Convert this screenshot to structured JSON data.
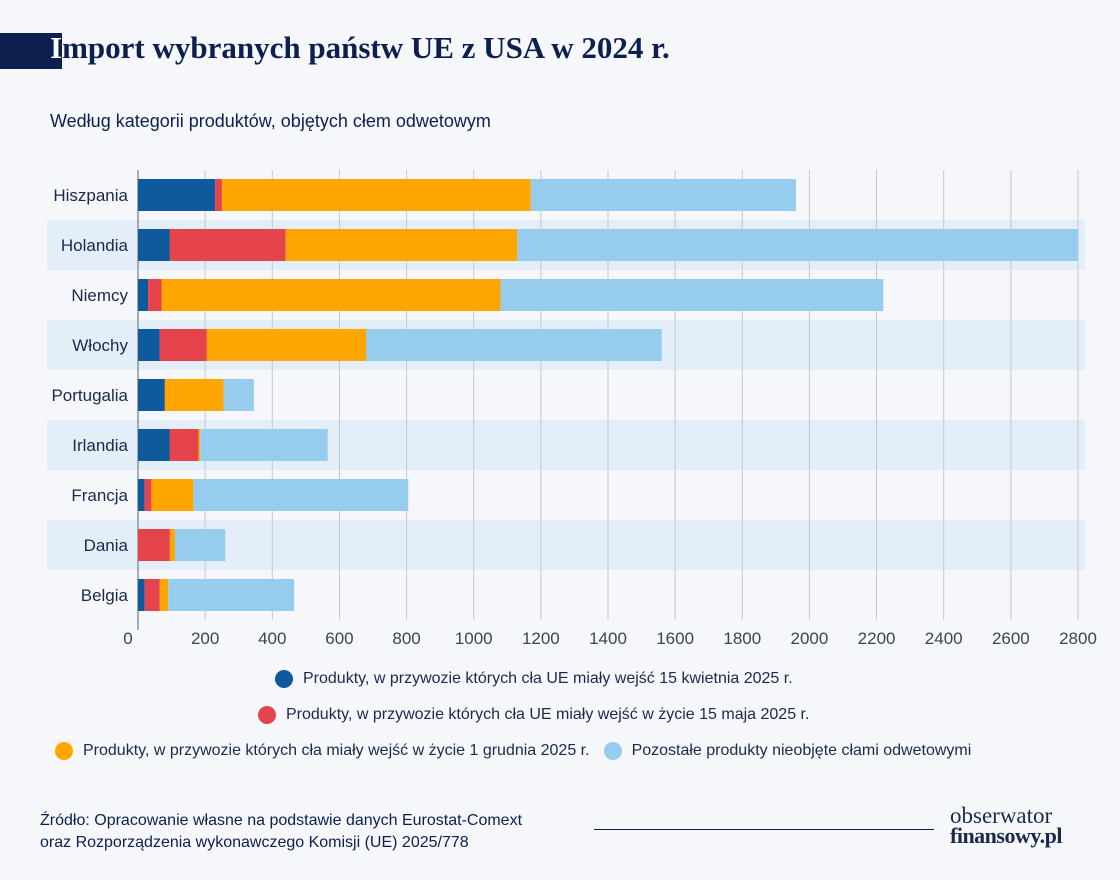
{
  "header": {
    "title_first": "I",
    "title_rest": "mport wybranych państw UE z USA w 2024 r.",
    "subtitle": "Według kategorii produktów, objętych cłem odwetowym"
  },
  "colors": {
    "dark_blue": "#0e5a9c",
    "red": "#e5444d",
    "orange": "#ffa600",
    "light_blue": "#96cdee",
    "stripe": "#e3eef8",
    "navy": "#0d1f4f"
  },
  "chart_data": {
    "type": "bar",
    "orientation": "horizontal",
    "stacked": true,
    "categories": [
      "Hiszpania",
      "Holandia",
      "Niemcy",
      "Włochy",
      "Portugalia",
      "Irlandia",
      "Francja",
      "Dania",
      "Belgia"
    ],
    "series": [
      {
        "name": "Produkty, w przywozie których cła UE miały wejść 15 kwietnia 2025 r.",
        "color": "#0e5a9c",
        "values": [
          230,
          95,
          30,
          65,
          80,
          95,
          20,
          0,
          20
        ]
      },
      {
        "name": "Produkty, w przywozie których cła UE miały wejść w życie 15 maja 2025 r.",
        "color": "#e5444d",
        "values": [
          20,
          345,
          40,
          140,
          0,
          85,
          20,
          95,
          45
        ]
      },
      {
        "name": "Produkty, w przywozie których cła miały wejść w życie 1 grudnia 2025 r.",
        "color": "#ffa600",
        "values": [
          920,
          690,
          1010,
          475,
          175,
          5,
          125,
          15,
          25
        ]
      },
      {
        "name": "Pozostałe produkty nieobjęte cłami odwetowymi",
        "color": "#96cdee",
        "values": [
          790,
          1670,
          1140,
          880,
          90,
          380,
          640,
          150,
          375
        ]
      }
    ],
    "xlim": [
      0,
      2800
    ],
    "xticks": [
      0,
      200,
      400,
      600,
      800,
      1000,
      1200,
      1400,
      1600,
      1800,
      2000,
      2200,
      2400,
      2600,
      2800
    ],
    "grid": true,
    "legend_position": "bottom"
  },
  "legend_rows": [
    [
      0
    ],
    [
      1
    ],
    [
      2,
      3
    ]
  ],
  "footer": {
    "source_line1": "Źródło: Opracowanie własne na podstawie danych Eurostat-Comext",
    "source_line2": "oraz Rozporządzenia wykonawczego Komisji (UE) 2025/778",
    "logo_line1": "obserwator",
    "logo_line2": "finansowy.pl"
  }
}
